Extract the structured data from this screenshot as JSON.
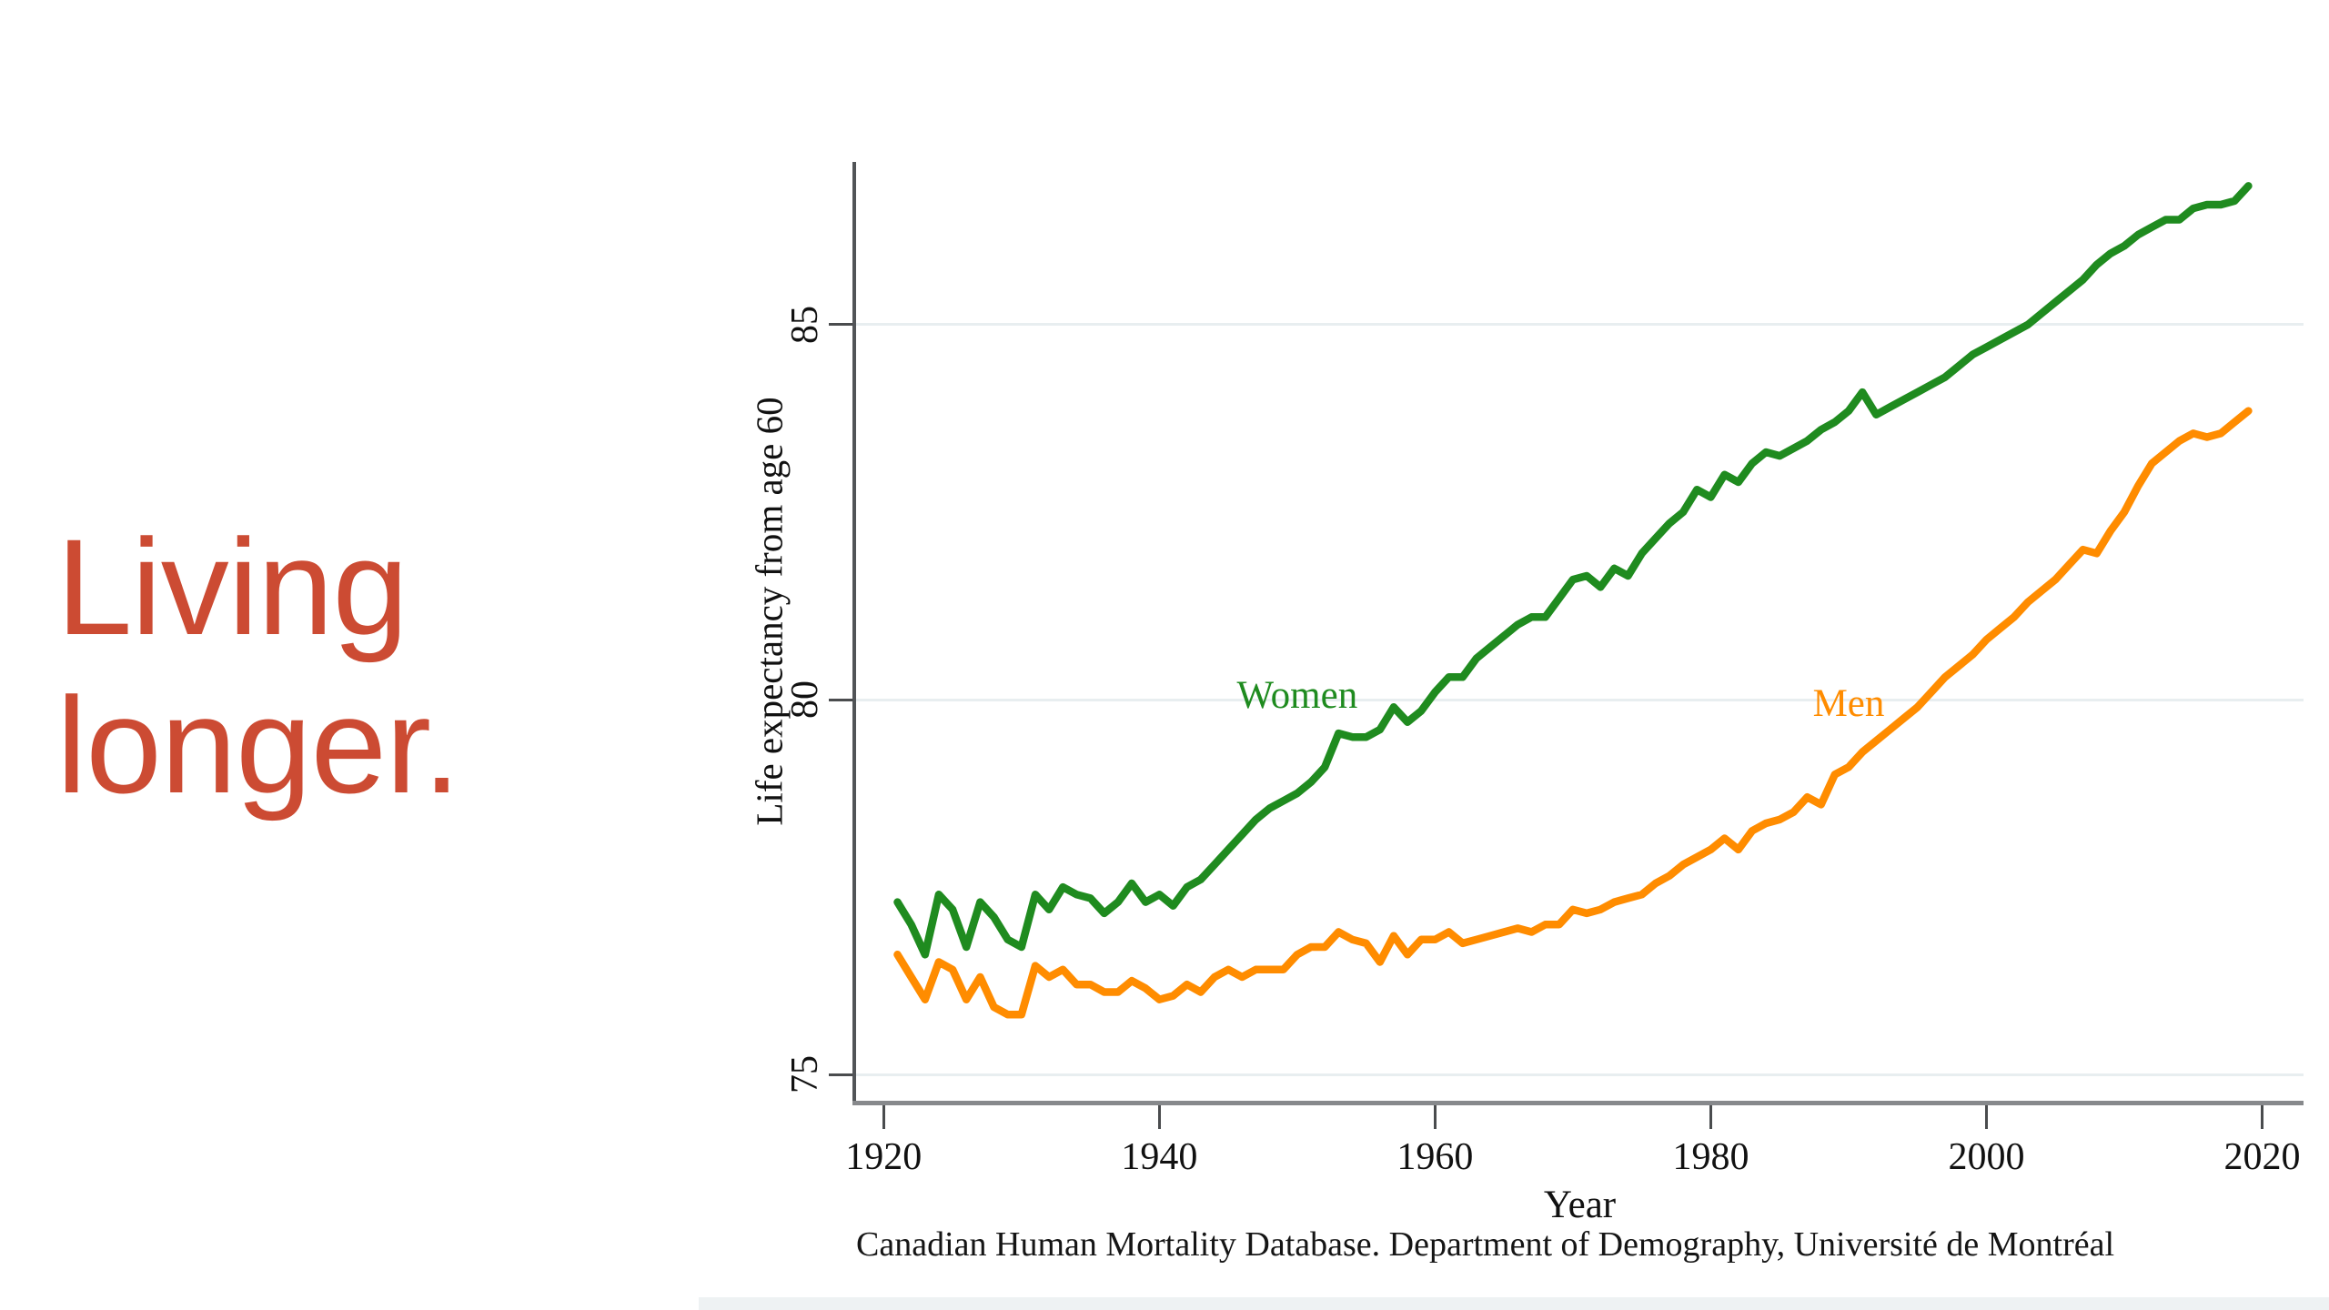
{
  "page": {
    "background": "#ffffff",
    "footer_strip_color": "#eef2f3"
  },
  "title": {
    "line1": "Living",
    "line2": "longer.",
    "color": "#CC4B33"
  },
  "chart_data": {
    "type": "line",
    "xlabel": "Year",
    "ylabel": "Life expectancy from age 60",
    "caption": "Canadian Human Mortality Database. Department of Demography, Université de Montréal",
    "x_ticks": [
      1920,
      1940,
      1960,
      1980,
      2000,
      2020
    ],
    "y_ticks": [
      75,
      80,
      85
    ],
    "xlim": [
      1918,
      2023
    ],
    "ylim": [
      74.65,
      87.17
    ],
    "grid": "horizontal-light",
    "legend_position": "inline-labels",
    "years_start": 1921,
    "years_end": 2019,
    "series": [
      {
        "name": "Women",
        "color": "#1F8B1F",
        "label_at": {
          "year": 1950,
          "value": 80.05
        },
        "values": [
          77.3,
          77.0,
          76.6,
          77.4,
          77.2,
          76.7,
          77.3,
          77.1,
          76.8,
          76.7,
          77.4,
          77.2,
          77.5,
          77.4,
          77.35,
          77.15,
          77.3,
          77.55,
          77.3,
          77.4,
          77.25,
          77.5,
          77.6,
          77.8,
          78.0,
          78.2,
          78.4,
          78.55,
          78.65,
          78.75,
          78.9,
          79.1,
          79.55,
          79.5,
          79.5,
          79.6,
          79.9,
          79.7,
          79.85,
          80.1,
          80.3,
          80.3,
          80.55,
          80.7,
          80.85,
          81.0,
          81.1,
          81.1,
          81.35,
          81.6,
          81.65,
          81.5,
          81.75,
          81.65,
          81.95,
          82.15,
          82.35,
          82.5,
          82.8,
          82.7,
          83.0,
          82.9,
          83.15,
          83.3,
          83.25,
          83.35,
          83.45,
          83.6,
          83.7,
          83.85,
          84.1,
          83.8,
          83.9,
          84.0,
          84.1,
          84.2,
          84.3,
          84.45,
          84.6,
          84.7,
          84.8,
          84.9,
          85.0,
          85.15,
          85.3,
          85.45,
          85.6,
          85.8,
          85.95,
          86.05,
          86.2,
          86.3,
          86.4,
          86.4,
          86.55,
          86.6,
          86.6,
          86.65,
          86.85
        ]
      },
      {
        "name": "Men",
        "color": "#FF8C00",
        "label_at": {
          "year": 1990,
          "value": 79.95
        },
        "values": [
          76.6,
          76.3,
          76.0,
          76.5,
          76.4,
          76.0,
          76.3,
          75.9,
          75.8,
          75.8,
          76.45,
          76.3,
          76.4,
          76.2,
          76.2,
          76.1,
          76.1,
          76.25,
          76.15,
          76.0,
          76.05,
          76.2,
          76.1,
          76.3,
          76.4,
          76.3,
          76.4,
          76.4,
          76.4,
          76.6,
          76.7,
          76.7,
          76.9,
          76.8,
          76.75,
          76.5,
          76.85,
          76.6,
          76.8,
          76.8,
          76.9,
          76.75,
          76.8,
          76.85,
          76.9,
          76.95,
          76.9,
          77.0,
          77.0,
          77.2,
          77.15,
          77.2,
          77.3,
          77.35,
          77.4,
          77.55,
          77.65,
          77.8,
          77.9,
          78.0,
          78.15,
          78.0,
          78.25,
          78.35,
          78.4,
          78.5,
          78.7,
          78.6,
          79.0,
          79.1,
          79.3,
          79.45,
          79.6,
          79.75,
          79.9,
          80.1,
          80.3,
          80.45,
          80.6,
          80.8,
          80.95,
          81.1,
          81.3,
          81.45,
          81.6,
          81.8,
          82.0,
          81.95,
          82.25,
          82.5,
          82.85,
          83.15,
          83.3,
          83.45,
          83.55,
          83.5,
          83.55,
          83.7,
          83.85
        ]
      }
    ]
  }
}
